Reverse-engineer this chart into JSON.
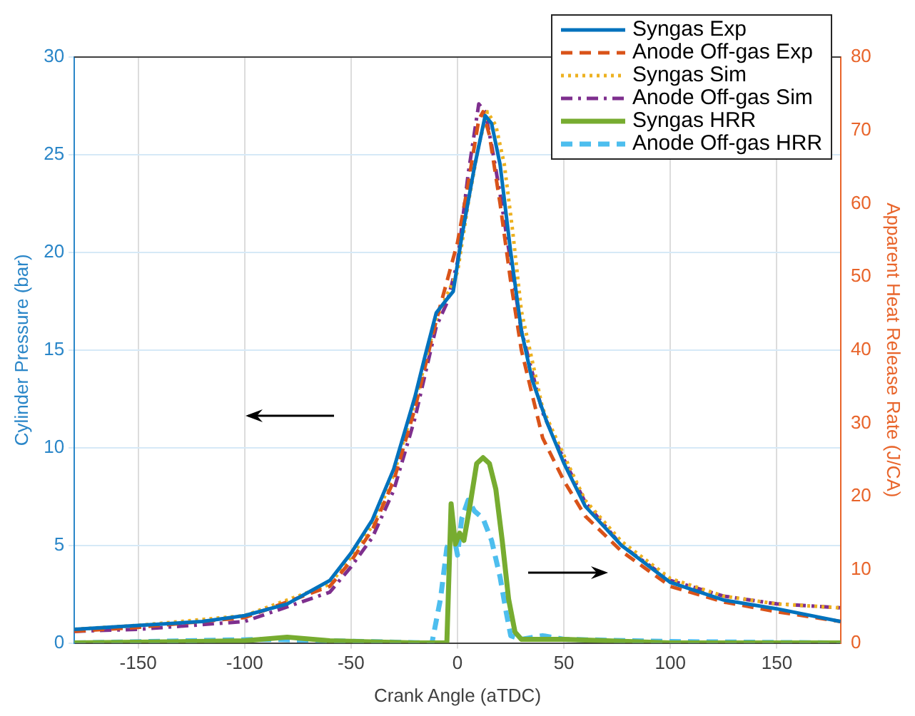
{
  "chart_data": {
    "type": "line",
    "xlabel": "Crank Angle (aTDC)",
    "ylabel": "Cylinder Pressure (bar)",
    "y2label": "Apparent Heat Release Rate (J/CA)",
    "xlim": [
      -180,
      180
    ],
    "xticks": [
      -150,
      -100,
      -50,
      0,
      50,
      100,
      150
    ],
    "ylim": [
      0,
      30
    ],
    "yticks": [
      0,
      5,
      10,
      15,
      20,
      25,
      30
    ],
    "y2lim": [
      0,
      80
    ],
    "y2ticks": [
      0,
      10,
      20,
      30,
      40,
      50,
      60,
      70,
      80
    ],
    "grid": true,
    "legend": "top right",
    "marker": "none",
    "series": [
      {
        "name": "Syngas Exp",
        "color": "#0072bd",
        "line_style": "solid",
        "x": [
          -180,
          -150,
          -120,
          -100,
          -80,
          -60,
          -50,
          -40,
          -30,
          -20,
          -15,
          -10,
          -5,
          -2,
          2,
          8,
          13,
          16,
          20,
          25,
          30,
          35,
          42,
          50,
          60,
          77,
          100,
          125,
          150,
          180
        ],
        "values": [
          0.7,
          0.9,
          1.1,
          1.4,
          2.0,
          3.2,
          4.6,
          6.3,
          8.9,
          12.6,
          14.8,
          16.9,
          17.6,
          18.0,
          20.8,
          24.4,
          27.0,
          26.6,
          24.5,
          20,
          16,
          13.5,
          11.3,
          9.2,
          7.0,
          5.0,
          3.1,
          2.2,
          1.75,
          1.1
        ]
      },
      {
        "name": "Anode Off-gas Exp",
        "color": "#d95319",
        "line_style": "dashed",
        "x": [
          -180,
          -150,
          -100,
          -60,
          -50,
          -40,
          -30,
          -20,
          -10,
          -5,
          0,
          5,
          10,
          12,
          15,
          20,
          25,
          30,
          40,
          50,
          60,
          77,
          100,
          125,
          150,
          180
        ],
        "values": [
          0.6,
          0.8,
          1.3,
          2.9,
          4.2,
          5.8,
          8.3,
          12,
          16.5,
          18.5,
          20.5,
          23.5,
          26.8,
          27.2,
          26,
          22.5,
          18.5,
          15,
          10.5,
          8.3,
          6.5,
          4.7,
          2.9,
          2.1,
          1.6,
          1.1
        ]
      },
      {
        "name": "Syngas Sim",
        "color": "#edb120",
        "line_style": "dotted",
        "x": [
          -180,
          -150,
          -100,
          -60,
          -50,
          -40,
          -30,
          -20,
          -10,
          -5,
          0,
          5,
          10,
          14,
          18,
          22,
          26,
          30,
          40,
          50,
          60,
          77,
          100,
          125,
          150,
          180
        ],
        "values": [
          0.7,
          0.9,
          1.4,
          3.0,
          4.4,
          6.0,
          8.6,
          12.3,
          16.6,
          17.8,
          19.0,
          22.5,
          25.5,
          27.2,
          26.5,
          24.5,
          21,
          17,
          12,
          9.6,
          7.3,
          5.2,
          3.3,
          2.4,
          2.0,
          1.8
        ]
      },
      {
        "name": "Anode Off-gas Sim",
        "color": "#7e2f8e",
        "line_style": "dashdot",
        "x": [
          -180,
          -150,
          -100,
          -60,
          -50,
          -40,
          -30,
          -20,
          -10,
          -5,
          0,
          5,
          10,
          13,
          16,
          20,
          25,
          30,
          40,
          50,
          60,
          77,
          100,
          125,
          150,
          180
        ],
        "values": [
          0.6,
          0.7,
          1.1,
          2.6,
          3.9,
          5.4,
          7.8,
          11.5,
          16.2,
          17.4,
          19.5,
          24,
          27.6,
          27.2,
          25.5,
          23,
          19.5,
          16,
          11.8,
          9.4,
          7.2,
          5.0,
          3.2,
          2.4,
          2.0,
          1.8
        ]
      },
      {
        "name": "Syngas HRR",
        "color": "#77ac30",
        "line_style": "solid",
        "axis": "y2",
        "x": [
          -180,
          -100,
          -80,
          -60,
          -20,
          -5,
          -3,
          -1,
          1,
          3,
          6,
          9,
          12,
          15,
          18,
          21,
          24,
          27,
          30,
          50,
          70,
          100,
          180
        ],
        "values": [
          0,
          0.3,
          0.8,
          0.3,
          0,
          0,
          19,
          13.5,
          15,
          14,
          19,
          24.5,
          25.3,
          24.5,
          21,
          14,
          6,
          1.5,
          0.5,
          0.5,
          0.3,
          0,
          0
        ]
      },
      {
        "name": "Anode Off-gas HRR",
        "color": "#4dbeee",
        "line_style": "dashed",
        "axis": "y2",
        "x": [
          -180,
          -90,
          -60,
          -12,
          -8,
          -5,
          -2,
          0,
          2,
          5,
          8,
          12,
          16,
          20,
          23,
          25,
          30,
          40,
          50,
          100,
          180
        ],
        "values": [
          0,
          0.5,
          0.3,
          0,
          6,
          13,
          15,
          12,
          17,
          19.5,
          18,
          17,
          14,
          9,
          4,
          1,
          0.5,
          1.0,
          0.5,
          0.2,
          0
        ]
      }
    ]
  }
}
